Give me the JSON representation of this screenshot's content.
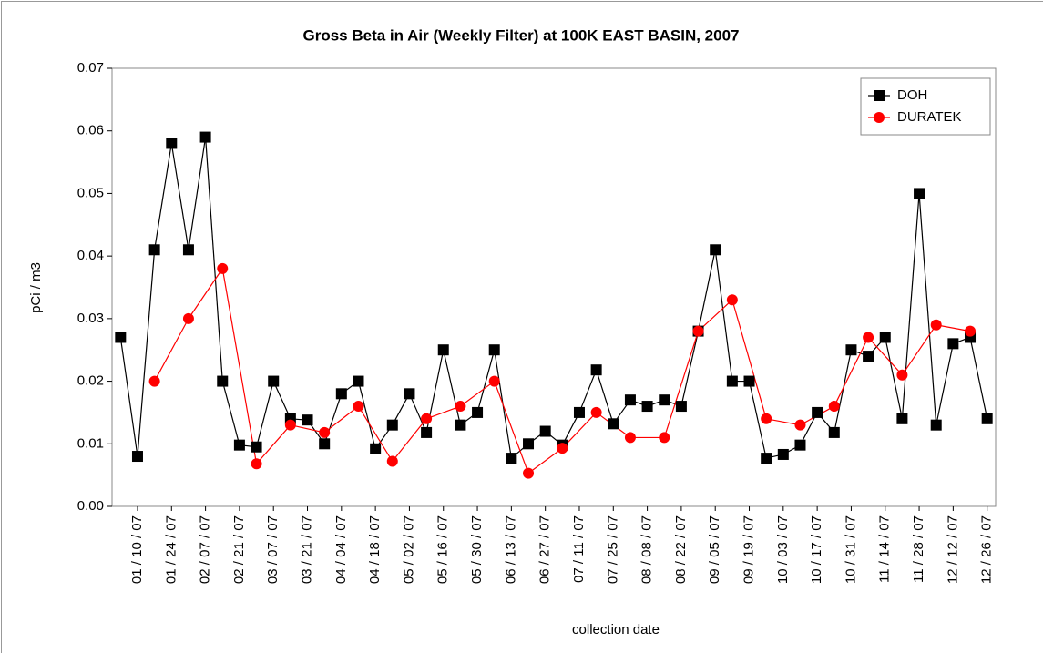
{
  "chart_data": {
    "type": "line",
    "title": "Gross Beta in Air (Weekly Filter) at 100K EAST BASIN, 2007",
    "x_label": "collection date",
    "y_label": "pCi / m3",
    "categories": [
      null,
      "01 / 10 / 07",
      null,
      "01 / 24 / 07",
      null,
      "02 / 07 / 07",
      null,
      "02 / 21 / 07",
      null,
      "03 / 07 / 07",
      null,
      "03 / 21 / 07",
      null,
      "04 / 04 / 07",
      null,
      "04 / 18 / 07",
      null,
      "05 / 02 / 07",
      null,
      "05 / 16 / 07",
      null,
      "05 / 30 / 07",
      null,
      "06 / 13 / 07",
      null,
      "06 / 27 / 07",
      null,
      "07 / 11 / 07",
      null,
      "07 / 25 / 07",
      null,
      "08 / 08 / 07",
      null,
      "08 / 22 / 07",
      null,
      "09 / 05 / 07",
      null,
      "09 / 19 / 07",
      null,
      "10 / 03 / 07",
      null,
      "10 / 17 / 07",
      null,
      "10 / 31 / 07",
      null,
      "11 / 14 / 07",
      null,
      "11 / 28 / 07",
      null,
      "12 / 12 / 07",
      null,
      "12 / 26 / 07"
    ],
    "series": [
      {
        "name": "DOH",
        "color": "#000000",
        "marker": "square",
        "values": [
          0.027,
          0.008,
          0.041,
          0.058,
          0.041,
          0.059,
          0.02,
          0.0098,
          0.0095,
          0.02,
          0.014,
          0.0138,
          0.01,
          0.018,
          0.02,
          0.0092,
          0.013,
          0.018,
          0.0118,
          0.025,
          0.013,
          0.015,
          0.025,
          0.0077,
          0.01,
          0.012,
          0.0098,
          0.015,
          0.0218,
          0.0132,
          0.017,
          0.016,
          0.017,
          0.016,
          0.028,
          0.041,
          0.02,
          0.02,
          0.0077,
          0.0083,
          0.0098,
          0.015,
          0.0118,
          0.025,
          0.024,
          0.027,
          0.014,
          0.05,
          0.013,
          0.026,
          0.027,
          0.014
        ]
      },
      {
        "name": "DURATEK",
        "color": "#ff0000",
        "marker": "circle",
        "values": [
          null,
          null,
          0.02,
          null,
          0.03,
          null,
          0.038,
          null,
          0.0068,
          null,
          0.013,
          null,
          0.0118,
          null,
          0.016,
          null,
          0.0072,
          null,
          0.014,
          null,
          0.016,
          null,
          0.02,
          null,
          0.0053,
          null,
          0.0093,
          null,
          0.015,
          null,
          0.011,
          null,
          0.011,
          null,
          0.028,
          null,
          0.033,
          null,
          0.014,
          null,
          0.013,
          null,
          0.016,
          null,
          0.027,
          null,
          0.021,
          null,
          0.029,
          null,
          0.028,
          null
        ]
      }
    ],
    "ylim": [
      0,
      0.07
    ],
    "yticks": [
      {
        "value": 0,
        "label": "0.00"
      },
      0.01,
      0.02,
      0.03,
      0.04,
      0.05,
      0.06,
      0.07
    ],
    "legend": "top-right"
  }
}
